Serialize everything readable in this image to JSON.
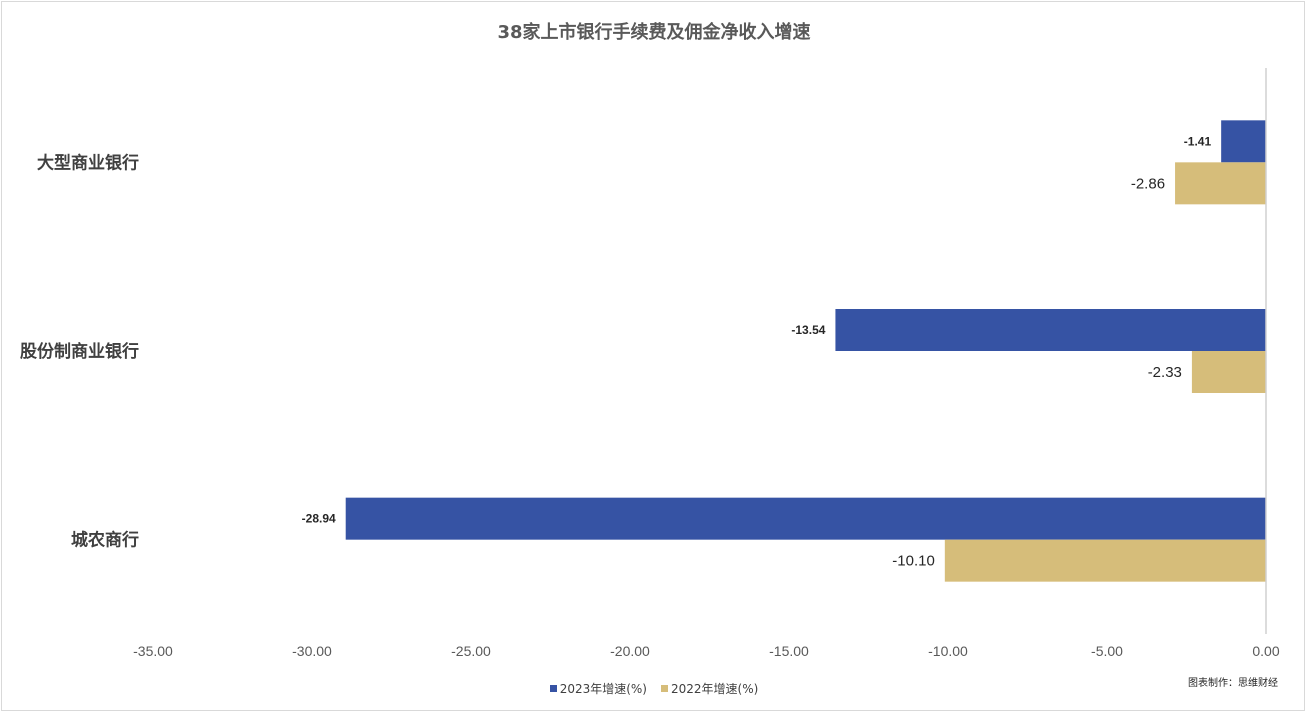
{
  "chart_data": {
    "type": "bar",
    "orientation": "horizontal",
    "title": "38家上市银行手续费及佣金净收入增速",
    "categories": [
      "大型商业银行",
      "股份制商业银行",
      "城农商行"
    ],
    "series": [
      {
        "name": "2023年增速(%)",
        "color": "#3653a4",
        "values": [
          -1.41,
          -13.54,
          -28.94
        ],
        "labels": [
          "-1.41",
          "-13.54",
          "-28.94"
        ]
      },
      {
        "name": "2022年增速(%)",
        "color": "#d6bd7a",
        "values": [
          -2.86,
          -2.33,
          -10.1
        ],
        "labels": [
          "-2.86",
          "-2.33",
          "-10.10"
        ]
      }
    ],
    "xlim": [
      -35,
      0
    ],
    "xticks": [
      -35,
      -30,
      -25,
      -20,
      -15,
      -10,
      -5,
      0
    ],
    "xtick_labels": [
      "-35.00",
      "-30.00",
      "-25.00",
      "-20.00",
      "-15.00",
      "-10.00",
      "-5.00",
      "0.00"
    ],
    "xlabel": "",
    "ylabel": "",
    "grid": false,
    "legend_position": "bottom"
  },
  "credit": "图表制作：思维财经"
}
